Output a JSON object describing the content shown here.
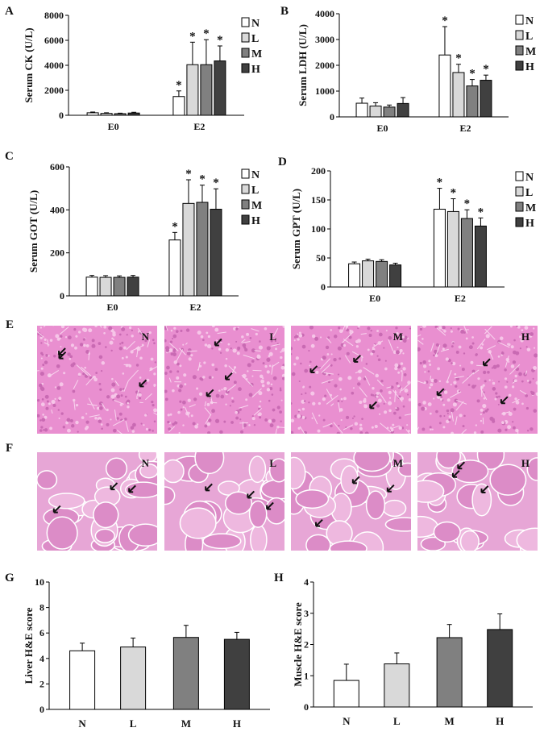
{
  "charts": [
    {
      "id": "A",
      "type": "bar",
      "panel_letter": "A",
      "ylabel": "Serum CK (U/L)",
      "categories": [
        "E0",
        "E2"
      ],
      "legend": [
        "N",
        "L",
        "M",
        "H"
      ],
      "ylim": [
        0,
        8000
      ],
      "yticks": [
        0,
        2000,
        4000,
        6000,
        8000
      ],
      "series": [
        {
          "name": "N",
          "values": [
            200,
            1500
          ],
          "errors": [
            60,
            450
          ]
        },
        {
          "name": "L",
          "values": [
            150,
            4050
          ],
          "errors": [
            50,
            1800
          ]
        },
        {
          "name": "M",
          "values": [
            130,
            4050
          ],
          "errors": [
            40,
            2000
          ]
        },
        {
          "name": "H",
          "values": [
            180,
            4350
          ],
          "errors": [
            60,
            1200
          ]
        }
      ],
      "sig": [
        [
          false,
          true
        ],
        [
          false,
          true
        ],
        [
          false,
          true
        ],
        [
          false,
          true
        ]
      ]
    },
    {
      "id": "B",
      "type": "bar",
      "panel_letter": "B",
      "ylabel": "Serum LDH (U/L)",
      "categories": [
        "E0",
        "E2"
      ],
      "legend": [
        "N",
        "L",
        "M",
        "H"
      ],
      "ylim": [
        0,
        4000
      ],
      "yticks": [
        0,
        1000,
        2000,
        3000,
        4000
      ],
      "series": [
        {
          "name": "N",
          "values": [
            530,
            2400
          ],
          "errors": [
            200,
            1100
          ]
        },
        {
          "name": "L",
          "values": [
            420,
            1720
          ],
          "errors": [
            130,
            320
          ]
        },
        {
          "name": "M",
          "values": [
            380,
            1200
          ],
          "errors": [
            80,
            250
          ]
        },
        {
          "name": "H",
          "values": [
            520,
            1420
          ],
          "errors": [
            230,
            200
          ]
        }
      ],
      "sig": [
        [
          false,
          true
        ],
        [
          false,
          true
        ],
        [
          false,
          true
        ],
        [
          false,
          true
        ]
      ]
    },
    {
      "id": "C",
      "type": "bar",
      "panel_letter": "C",
      "ylabel": "Serum GOT (U/L)",
      "categories": [
        "E0",
        "E2"
      ],
      "legend": [
        "N",
        "L",
        "M",
        "H"
      ],
      "ylim": [
        0,
        600
      ],
      "yticks": [
        0,
        200,
        400,
        600
      ],
      "series": [
        {
          "name": "N",
          "values": [
            87,
            260
          ],
          "errors": [
            8,
            35
          ]
        },
        {
          "name": "L",
          "values": [
            86,
            430
          ],
          "errors": [
            8,
            110
          ]
        },
        {
          "name": "M",
          "values": [
            86,
            435
          ],
          "errors": [
            7,
            80
          ]
        },
        {
          "name": "H",
          "values": [
            87,
            403
          ],
          "errors": [
            8,
            95
          ]
        }
      ],
      "sig": [
        [
          false,
          true
        ],
        [
          false,
          true
        ],
        [
          false,
          true
        ],
        [
          false,
          true
        ]
      ]
    },
    {
      "id": "D",
      "type": "bar",
      "panel_letter": "D",
      "ylabel": "Serum GPT (U/L)",
      "categories": [
        "E0",
        "E2"
      ],
      "legend": [
        "N",
        "L",
        "M",
        "H"
      ],
      "ylim": [
        0,
        200
      ],
      "yticks": [
        0,
        50,
        100,
        150,
        200
      ],
      "series": [
        {
          "name": "N",
          "values": [
            40,
            134
          ],
          "errors": [
            3,
            36
          ]
        },
        {
          "name": "L",
          "values": [
            45,
            130
          ],
          "errors": [
            3,
            22
          ]
        },
        {
          "name": "M",
          "values": [
            44,
            118
          ],
          "errors": [
            3,
            15
          ]
        },
        {
          "name": "H",
          "values": [
            38,
            105
          ],
          "errors": [
            3,
            14
          ]
        }
      ],
      "sig": [
        [
          false,
          true
        ],
        [
          false,
          true
        ],
        [
          false,
          true
        ],
        [
          false,
          true
        ]
      ]
    },
    {
      "id": "G",
      "type": "bar",
      "panel_letter": "G",
      "ylabel": "Liver H&E score",
      "categories": [
        "N",
        "L",
        "M",
        "H"
      ],
      "ylim": [
        0,
        10
      ],
      "yticks": [
        0,
        2,
        4,
        6,
        8,
        10
      ],
      "series": [
        {
          "name": "score",
          "values": [
            4.6,
            4.9,
            5.65,
            5.5
          ],
          "errors": [
            0.6,
            0.7,
            0.95,
            0.55
          ]
        }
      ]
    },
    {
      "id": "H",
      "type": "bar",
      "panel_letter": "H",
      "ylabel": "Muscle H&E score",
      "categories": [
        "N",
        "L",
        "M",
        "H"
      ],
      "ylim": [
        0,
        4
      ],
      "yticks": [
        0,
        1,
        2,
        3,
        4
      ],
      "series": [
        {
          "name": "score",
          "values": [
            0.85,
            1.38,
            2.22,
            2.48
          ],
          "errors": [
            0.52,
            0.35,
            0.42,
            0.5
          ]
        }
      ]
    }
  ],
  "chart_data": [
    {
      "type": "bar",
      "title": "A",
      "ylabel": "Serum CK (U/L)",
      "categories": [
        "E0",
        "E2"
      ],
      "ylim": [
        0,
        8000
      ],
      "series": [
        {
          "name": "N",
          "values": [
            200,
            1500
          ]
        },
        {
          "name": "L",
          "values": [
            150,
            4050
          ]
        },
        {
          "name": "M",
          "values": [
            130,
            4050
          ]
        },
        {
          "name": "H",
          "values": [
            180,
            4350
          ]
        }
      ]
    },
    {
      "type": "bar",
      "title": "B",
      "ylabel": "Serum LDH (U/L)",
      "categories": [
        "E0",
        "E2"
      ],
      "ylim": [
        0,
        4000
      ],
      "series": [
        {
          "name": "N",
          "values": [
            530,
            2400
          ]
        },
        {
          "name": "L",
          "values": [
            420,
            1720
          ]
        },
        {
          "name": "M",
          "values": [
            380,
            1200
          ]
        },
        {
          "name": "H",
          "values": [
            520,
            1420
          ]
        }
      ]
    },
    {
      "type": "bar",
      "title": "C",
      "ylabel": "Serum GOT (U/L)",
      "categories": [
        "E0",
        "E2"
      ],
      "ylim": [
        0,
        600
      ],
      "series": [
        {
          "name": "N",
          "values": [
            87,
            260
          ]
        },
        {
          "name": "L",
          "values": [
            86,
            430
          ]
        },
        {
          "name": "M",
          "values": [
            86,
            435
          ]
        },
        {
          "name": "H",
          "values": [
            87,
            403
          ]
        }
      ]
    },
    {
      "type": "bar",
      "title": "D",
      "ylabel": "Serum GPT (U/L)",
      "categories": [
        "E0",
        "E2"
      ],
      "ylim": [
        0,
        200
      ],
      "series": [
        {
          "name": "N",
          "values": [
            40,
            134
          ]
        },
        {
          "name": "L",
          "values": [
            45,
            130
          ]
        },
        {
          "name": "M",
          "values": [
            44,
            118
          ]
        },
        {
          "name": "H",
          "values": [
            38,
            105
          ]
        }
      ]
    },
    {
      "type": "bar",
      "title": "G",
      "ylabel": "Liver H&E score",
      "categories": [
        "N",
        "L",
        "M",
        "H"
      ],
      "ylim": [
        0,
        10
      ],
      "series": [
        {
          "name": "score",
          "values": [
            4.6,
            4.9,
            5.65,
            5.5
          ]
        }
      ]
    },
    {
      "type": "bar",
      "title": "H",
      "ylabel": "Muscle H&E score",
      "categories": [
        "N",
        "L",
        "M",
        "H"
      ],
      "ylim": [
        0,
        4
      ],
      "series": [
        {
          "name": "score",
          "values": [
            0.85,
            1.38,
            2.22,
            2.48
          ]
        }
      ]
    }
  ],
  "colors": {
    "N": "#ffffff",
    "L": "#d9d9d9",
    "M": "#808080",
    "H": "#404040",
    "axis": "#000000",
    "liver_bg": "#e98fd0",
    "muscle_bg": "#e7a6d6"
  },
  "sig_marker": "*",
  "histology": {
    "row_E_letter": "E",
    "row_F_letter": "F",
    "liver_labels": [
      "N",
      "L",
      "M",
      "H"
    ],
    "muscle_labels": [
      "N",
      "L",
      "M",
      "H"
    ]
  }
}
